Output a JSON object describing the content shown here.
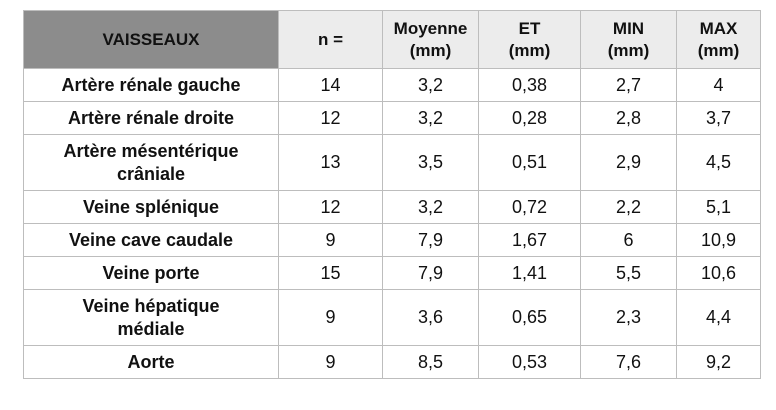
{
  "table": {
    "headers": [
      {
        "line1": "VAISSEAUX",
        "line2": ""
      },
      {
        "line1": "n =",
        "line2": ""
      },
      {
        "line1": "Moyenne",
        "line2": "(mm)"
      },
      {
        "line1": "ET",
        "line2": "(mm)"
      },
      {
        "line1": "MIN",
        "line2": "(mm)"
      },
      {
        "line1": "MAX",
        "line2": "(mm)"
      }
    ],
    "rows": [
      {
        "vessel_line1": "Artère rénale gauche",
        "vessel_line2": "",
        "n": "14",
        "moyenne": "3,2",
        "et": "0,38",
        "min": "2,7",
        "max": "4"
      },
      {
        "vessel_line1": "Artère rénale droite",
        "vessel_line2": "",
        "n": "12",
        "moyenne": "3,2",
        "et": "0,28",
        "min": "2,8",
        "max": "3,7"
      },
      {
        "vessel_line1": "Artère mésentérique",
        "vessel_line2": "crâniale",
        "n": "13",
        "moyenne": "3,5",
        "et": "0,51",
        "min": "2,9",
        "max": "4,5"
      },
      {
        "vessel_line1": "Veine splénique",
        "vessel_line2": "",
        "n": "12",
        "moyenne": "3,2",
        "et": "0,72",
        "min": "2,2",
        "max": "5,1"
      },
      {
        "vessel_line1": "Veine cave caudale",
        "vessel_line2": "",
        "n": "9",
        "moyenne": "7,9",
        "et": "1,67",
        "min": "6",
        "max": "10,9"
      },
      {
        "vessel_line1": "Veine porte",
        "vessel_line2": "",
        "n": "15",
        "moyenne": "7,9",
        "et": "1,41",
        "min": "5,5",
        "max": "10,6"
      },
      {
        "vessel_line1": "Veine hépatique",
        "vessel_line2": "médiale",
        "n": "9",
        "moyenne": "3,6",
        "et": "0,65",
        "min": "2,3",
        "max": "4,4"
      },
      {
        "vessel_line1": "Aorte",
        "vessel_line2": "",
        "n": "9",
        "moyenne": "8,5",
        "et": "0,53",
        "min": "7,6",
        "max": "9,2"
      }
    ]
  },
  "colors": {
    "header_first_cell": "#8c8c8c",
    "header_cells": "#ececec",
    "border": "#bdbdbd"
  }
}
